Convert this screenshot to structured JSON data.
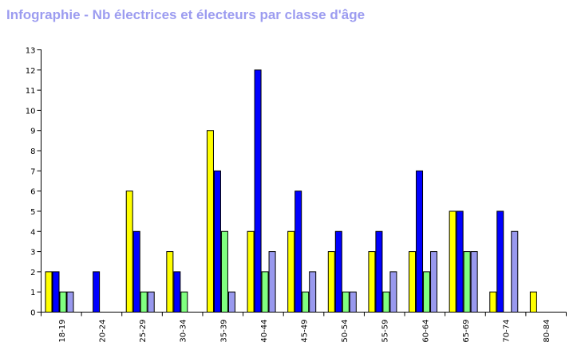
{
  "title": "Infographie - Nb électrices et électeurs par classe d'âge",
  "chart_data": {
    "type": "bar",
    "title": "Infographie - Nb électrices et électeurs par classe d'âge",
    "xlabel": "",
    "ylabel": "",
    "ylim": [
      0,
      13
    ],
    "yticks": [
      "0",
      "1",
      "2",
      "3",
      "4",
      "5",
      "6",
      "7",
      "8",
      "9",
      "10",
      "11",
      "12",
      "13"
    ],
    "categories": [
      "18-19",
      "20-24",
      "25-29",
      "30-34",
      "35-39",
      "40-44",
      "45-49",
      "50-54",
      "55-59",
      "60-64",
      "65-69",
      "70-74",
      "80-84"
    ],
    "colors": [
      "#ffff00",
      "#0000ff",
      "#80ff80",
      "#9999ee"
    ],
    "series": [
      {
        "values": [
          2,
          0,
          6,
          3,
          9,
          4,
          4,
          3,
          3,
          3,
          5,
          1,
          1
        ]
      },
      {
        "values": [
          2,
          2,
          4,
          2,
          7,
          12,
          6,
          4,
          4,
          7,
          5,
          5,
          0
        ]
      },
      {
        "values": [
          1,
          0,
          1,
          1,
          4,
          2,
          1,
          1,
          1,
          2,
          3,
          0,
          0
        ]
      },
      {
        "values": [
          1,
          0,
          1,
          0,
          1,
          3,
          2,
          1,
          2,
          3,
          3,
          4,
          0
        ]
      }
    ],
    "legend": "none",
    "grid": false
  }
}
